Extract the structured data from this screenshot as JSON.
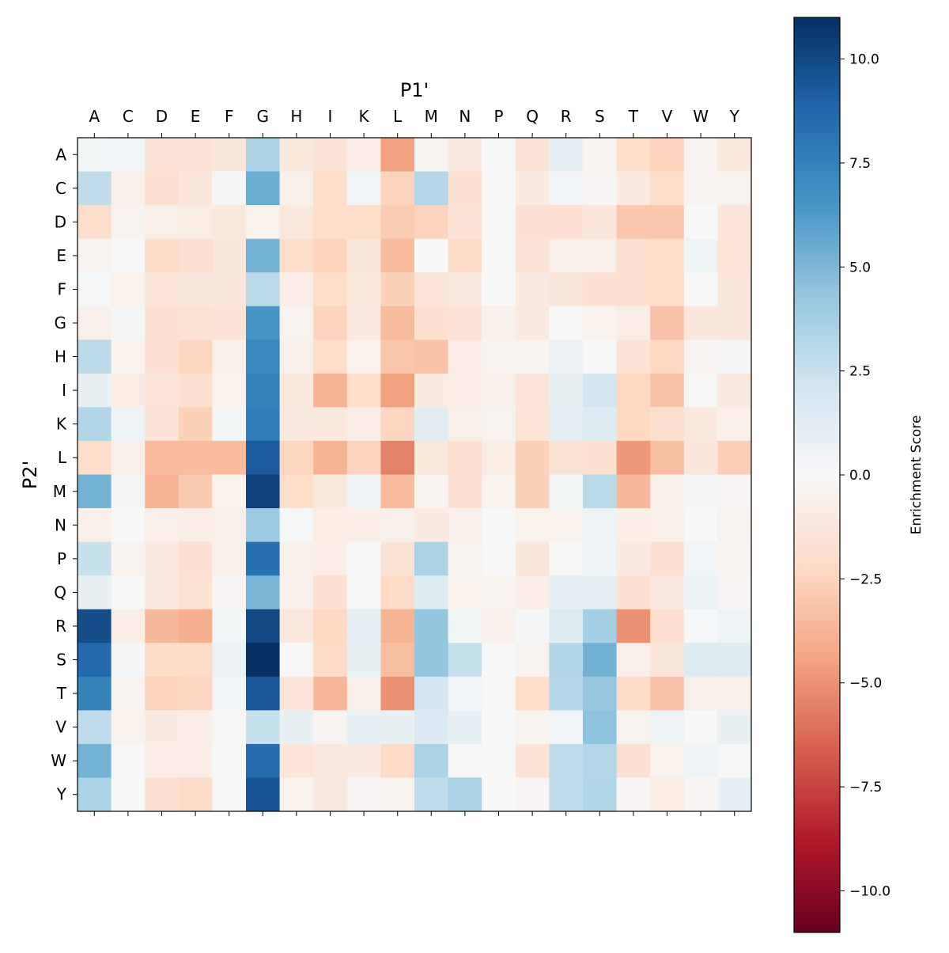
{
  "chart_data": {
    "type": "heatmap",
    "xlabel": "P1'",
    "ylabel": "P2'",
    "x_categories": [
      "A",
      "C",
      "D",
      "E",
      "F",
      "G",
      "H",
      "I",
      "K",
      "L",
      "M",
      "N",
      "P",
      "Q",
      "R",
      "S",
      "T",
      "V",
      "W",
      "Y"
    ],
    "y_categories": [
      "A",
      "C",
      "D",
      "E",
      "F",
      "G",
      "H",
      "I",
      "K",
      "L",
      "M",
      "N",
      "P",
      "Q",
      "R",
      "S",
      "T",
      "V",
      "W",
      "Y"
    ],
    "colormap": "RdBu",
    "colormap_stops": [
      "#67001f",
      "#b2182b",
      "#d6604d",
      "#f4a582",
      "#fddbc7",
      "#f7f7f7",
      "#d1e5f0",
      "#92c5de",
      "#4393c3",
      "#2166ac",
      "#053061"
    ],
    "value_range": [
      -11,
      11
    ],
    "colorbar": {
      "label": "Enrichment Score",
      "ticks": [
        10.0,
        7.5,
        5.0,
        2.5,
        0.0,
        -2.5,
        -5.0,
        -7.5,
        -10.0
      ],
      "tick_labels": [
        "10.0",
        "7.5",
        "5.0",
        "2.5",
        "0.0",
        "−2.5",
        "−5.0",
        "−7.5",
        "−10.0"
      ]
    },
    "values": [
      [
        0.3,
        0.4,
        -1.5,
        -1.5,
        -1.3,
        3.5,
        -1.2,
        -1.5,
        -0.8,
        -4.5,
        -0.3,
        -1,
        0,
        -1.5,
        1,
        -0.3,
        -2,
        -2.5,
        -0.3,
        -1.2
      ],
      [
        2.8,
        -0.7,
        -1.8,
        -1.3,
        0.2,
        5.5,
        -0.7,
        -2,
        0.4,
        -2.5,
        3.2,
        -1.8,
        0,
        -1,
        0.4,
        -0.2,
        -1,
        -2,
        -0.3,
        -0.4
      ],
      [
        -2,
        -0.4,
        -0.7,
        -0.9,
        -1.2,
        -0.5,
        -1.2,
        -2,
        -2,
        -2.8,
        -2.5,
        -1.5,
        0,
        -1.7,
        -1.7,
        -1.3,
        -3,
        -3,
        0,
        -1.4
      ],
      [
        -0.3,
        0,
        -2.1,
        -1.8,
        -1.3,
        5.2,
        -2,
        -2.5,
        -1.3,
        -3.5,
        0,
        -2.2,
        0,
        -1.5,
        -0.6,
        -0.7,
        -1.8,
        -2,
        0.5,
        -1.4
      ],
      [
        0.1,
        -0.5,
        -1.4,
        -1.3,
        -1.3,
        3,
        -0.8,
        -2,
        -1.2,
        -2.6,
        -1.4,
        -1.1,
        0,
        -1,
        -1.3,
        -1.7,
        -1.8,
        -2,
        0,
        -1.3
      ],
      [
        -0.6,
        0.2,
        -1.9,
        -1.6,
        -1.5,
        6.5,
        -0.4,
        -2.5,
        -1.1,
        -3.5,
        -1.8,
        -1.5,
        -0.6,
        -1.1,
        0,
        -0.5,
        -0.8,
        -3.2,
        -1.3,
        -1.3
      ],
      [
        3,
        -0.5,
        -1.7,
        -2.4,
        -0.7,
        7.2,
        -0.6,
        -2,
        -0.5,
        -3.1,
        -3.2,
        -0.8,
        -0.4,
        -0.3,
        0.7,
        0,
        -1.5,
        -2.3,
        -0.3,
        0.2
      ],
      [
        0.8,
        -0.9,
        -1.4,
        -1.7,
        -0.5,
        7.5,
        -1.2,
        -3.8,
        -2,
        -4.5,
        -1,
        -0.8,
        -0.6,
        -1.4,
        0.8,
        2,
        -2.3,
        -3.2,
        -0.1,
        -1.1
      ],
      [
        3.3,
        0.6,
        -1.5,
        -2.6,
        0.3,
        7.7,
        -1.1,
        -1.2,
        -0.8,
        -2.4,
        1.2,
        -0.7,
        -0.4,
        -1.4,
        1.1,
        1.5,
        -2.3,
        -1.9,
        -1.2,
        -0.7
      ],
      [
        -2,
        -0.6,
        -3.5,
        -3.5,
        -3.5,
        9.2,
        -2.4,
        -3.8,
        -2.5,
        -5.5,
        -1.2,
        -1.9,
        -0.9,
        -2.6,
        -1.6,
        -1.8,
        -4.8,
        -3.4,
        -1.3,
        -2.7
      ],
      [
        5.2,
        0.2,
        -3.8,
        -2.9,
        -0.5,
        10.3,
        -2,
        -1.2,
        0.6,
        -3.5,
        -0.4,
        -1.7,
        -0.5,
        -2.6,
        0.3,
        3,
        -3.6,
        -0.6,
        0.2,
        -0.2
      ],
      [
        -0.7,
        0,
        -0.7,
        -0.8,
        -0.6,
        4,
        0.1,
        -0.9,
        -0.8,
        -0.6,
        -1,
        -0.6,
        0,
        -0.5,
        -0.5,
        0.6,
        -0.8,
        -0.7,
        0,
        -0.4
      ],
      [
        2.5,
        -0.4,
        -1,
        -1.7,
        -0.6,
        8.3,
        -0.6,
        -0.8,
        0,
        -1.6,
        3.5,
        -0.4,
        0,
        -1.3,
        -0.1,
        0.5,
        -1.1,
        -1.7,
        0.4,
        -0.3
      ],
      [
        0.8,
        0,
        -1,
        -1.6,
        -0.2,
        5,
        -0.6,
        -1.7,
        0,
        -2.2,
        1.4,
        -0.5,
        -0.4,
        -0.8,
        1,
        1,
        -1.7,
        -1.1,
        0.7,
        -0.2
      ],
      [
        9.8,
        -0.8,
        -3.6,
        -4,
        0.3,
        10,
        -1.2,
        -2.3,
        1,
        -3.8,
        4.3,
        0.3,
        -0.6,
        0.2,
        1.5,
        3.8,
        -5,
        -1.9,
        0.1,
        0.6
      ],
      [
        8.6,
        0.2,
        -2.1,
        -2.1,
        0.7,
        11,
        -0.1,
        -2.2,
        0.8,
        -3.4,
        4.3,
        2.6,
        0,
        -0.4,
        3.3,
        5.3,
        -0.7,
        -1.3,
        1.5,
        1.5
      ],
      [
        7.5,
        -0.4,
        -2.5,
        -2.4,
        0.4,
        9.4,
        -1.4,
        -3.7,
        -0.6,
        -5,
        2,
        0.4,
        0,
        -2,
        3.2,
        4.2,
        -2.1,
        -3.2,
        -0.6,
        -0.6
      ],
      [
        2.8,
        -0.5,
        -1,
        -0.8,
        -0.1,
        2.5,
        0.8,
        -0.3,
        0.9,
        0.8,
        1.6,
        1,
        0,
        -0.4,
        0.4,
        4.5,
        -0.4,
        0.6,
        0,
        0.8
      ],
      [
        5.2,
        0,
        -0.8,
        -0.8,
        0,
        8.5,
        -1.4,
        -1.1,
        -1,
        -2.2,
        3.5,
        0,
        0,
        -1.5,
        2.8,
        3.2,
        -1.7,
        -0.5,
        0.6,
        0.1
      ],
      [
        3.5,
        0,
        -1.8,
        -2.1,
        0,
        9.5,
        -0.5,
        -1.1,
        -0.2,
        -0.4,
        2.8,
        3.5,
        0,
        -0.2,
        2.8,
        3.3,
        -0.2,
        -0.9,
        -0.2,
        0.9
      ]
    ]
  }
}
